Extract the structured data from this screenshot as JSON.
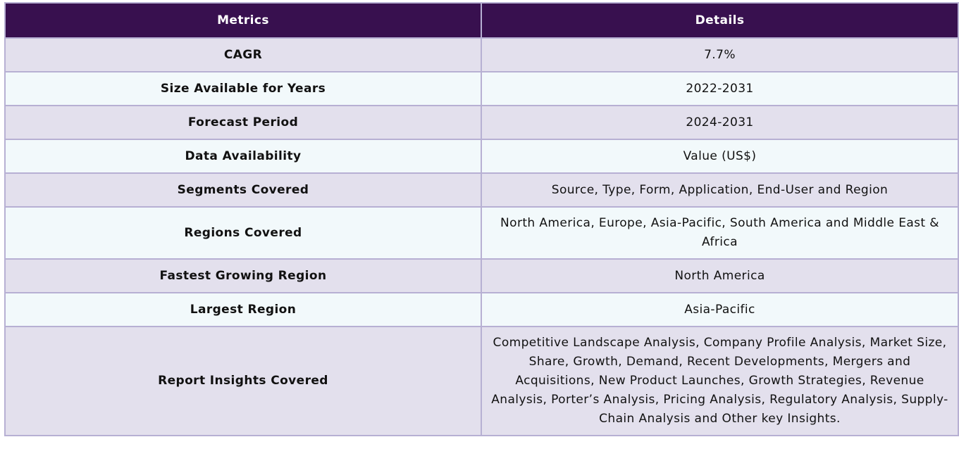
{
  "table": {
    "headers": {
      "metrics": "Metrics",
      "details": "Details"
    },
    "rows": [
      {
        "metric": "CAGR",
        "detail": "7.7%"
      },
      {
        "metric": "Size Available for Years",
        "detail": "2022-2031"
      },
      {
        "metric": "Forecast Period",
        "detail": "2024-2031"
      },
      {
        "metric": "Data Availability",
        "detail": "Value (US$)"
      },
      {
        "metric": "Segments Covered",
        "detail": "Source, Type, Form, Application, End-User and Region"
      },
      {
        "metric": "Regions Covered",
        "detail": "North America, Europe, Asia-Pacific, South America and Middle East & Africa"
      },
      {
        "metric": "Fastest Growing Region",
        "detail": "North America"
      },
      {
        "metric": "Largest Region",
        "detail": "Asia-Pacific"
      },
      {
        "metric": "Report Insights Covered",
        "detail": "Competitive Landscape Analysis, Company Profile Analysis, Market Size, Share, Growth, Demand, Recent Developments, Mergers and Acquisitions, New Product Launches, Growth Strategies, Revenue Analysis, Porter’s Analysis, Pricing Analysis, Regulatory Analysis, Supply-Chain Analysis and Other key Insights."
      }
    ]
  },
  "colors": {
    "header_bg": "#38104f",
    "header_text": "#ffffff",
    "row_odd_bg": "#e3e0ed",
    "row_even_bg": "#f2f9fb",
    "border": "#b7b0d3"
  }
}
